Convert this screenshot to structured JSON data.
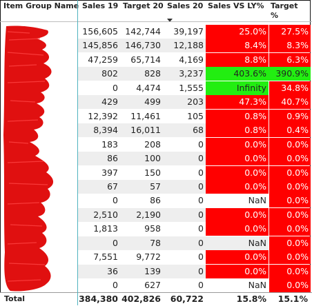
{
  "headers": {
    "item_group": "Item Group Name",
    "sales19": "Sales 19",
    "target20": "Target 20",
    "sales20": "Sales 20",
    "sales_vs_ly": "Sales VS LY%",
    "target_pct": "Target %"
  },
  "rows": [
    {
      "sales19": "156,605",
      "target20": "142,744",
      "sales20": "39,197",
      "vs_ly": "25.0%",
      "target_pct": "27.5%",
      "vs_ly_color": "red",
      "target_color": "red"
    },
    {
      "sales19": "145,856",
      "target20": "146,730",
      "sales20": "12,188",
      "vs_ly": "8.4%",
      "target_pct": "8.3%",
      "vs_ly_color": "red",
      "target_color": "red"
    },
    {
      "sales19": "47,259",
      "target20": "65,714",
      "sales20": "4,169",
      "vs_ly": "8.8%",
      "target_pct": "6.3%",
      "vs_ly_color": "red",
      "target_color": "red"
    },
    {
      "sales19": "802",
      "target20": "828",
      "sales20": "3,237",
      "vs_ly": "403.6%",
      "target_pct": "390.9%",
      "vs_ly_color": "green",
      "target_color": "green"
    },
    {
      "sales19": "0",
      "target20": "4,474",
      "sales20": "1,555",
      "vs_ly": "Infinity",
      "target_pct": "34.8%",
      "vs_ly_color": "green",
      "target_color": "red"
    },
    {
      "sales19": "429",
      "target20": "499",
      "sales20": "203",
      "vs_ly": "47.3%",
      "target_pct": "40.7%",
      "vs_ly_color": "red",
      "target_color": "red"
    },
    {
      "sales19": "12,392",
      "target20": "11,461",
      "sales20": "105",
      "vs_ly": "0.8%",
      "target_pct": "0.9%",
      "vs_ly_color": "red",
      "target_color": "red"
    },
    {
      "sales19": "8,394",
      "target20": "16,011",
      "sales20": "68",
      "vs_ly": "0.8%",
      "target_pct": "0.4%",
      "vs_ly_color": "red",
      "target_color": "red"
    },
    {
      "sales19": "183",
      "target20": "208",
      "sales20": "0",
      "vs_ly": "0.0%",
      "target_pct": "0.0%",
      "vs_ly_color": "red",
      "target_color": "red"
    },
    {
      "sales19": "86",
      "target20": "100",
      "sales20": "0",
      "vs_ly": "0.0%",
      "target_pct": "0.0%",
      "vs_ly_color": "red",
      "target_color": "red"
    },
    {
      "sales19": "397",
      "target20": "150",
      "sales20": "0",
      "vs_ly": "0.0%",
      "target_pct": "0.0%",
      "vs_ly_color": "red",
      "target_color": "red"
    },
    {
      "sales19": "67",
      "target20": "57",
      "sales20": "0",
      "vs_ly": "0.0%",
      "target_pct": "0.0%",
      "vs_ly_color": "red",
      "target_color": "red"
    },
    {
      "sales19": "0",
      "target20": "86",
      "sales20": "0",
      "vs_ly": "NaN",
      "target_pct": "0.0%",
      "vs_ly_color": "white",
      "target_color": "red"
    },
    {
      "sales19": "2,510",
      "target20": "2,190",
      "sales20": "0",
      "vs_ly": "0.0%",
      "target_pct": "0.0%",
      "vs_ly_color": "red",
      "target_color": "red"
    },
    {
      "sales19": "1,813",
      "target20": "958",
      "sales20": "0",
      "vs_ly": "0.0%",
      "target_pct": "0.0%",
      "vs_ly_color": "red",
      "target_color": "red"
    },
    {
      "sales19": "0",
      "target20": "78",
      "sales20": "0",
      "vs_ly": "NaN",
      "target_pct": "0.0%",
      "vs_ly_color": "white",
      "target_color": "red"
    },
    {
      "sales19": "7,551",
      "target20": "9,772",
      "sales20": "0",
      "vs_ly": "0.0%",
      "target_pct": "0.0%",
      "vs_ly_color": "red",
      "target_color": "red"
    },
    {
      "sales19": "36",
      "target20": "139",
      "sales20": "0",
      "vs_ly": "0.0%",
      "target_pct": "0.0%",
      "vs_ly_color": "red",
      "target_color": "red"
    },
    {
      "sales19": "0",
      "target20": "627",
      "sales20": "0",
      "vs_ly": "NaN",
      "target_pct": "0.0%",
      "vs_ly_color": "white",
      "target_color": "red"
    }
  ],
  "total": {
    "label": "Total",
    "sales19": "384,380",
    "target20": "402,826",
    "sales20": "60,722",
    "vs_ly": "15.8%",
    "target_pct": "15.1%"
  },
  "colors": {
    "red": "#ff0000",
    "green": "#22ee11",
    "accent_line": "#4fb3bf",
    "stripe": "#eeeeee"
  }
}
